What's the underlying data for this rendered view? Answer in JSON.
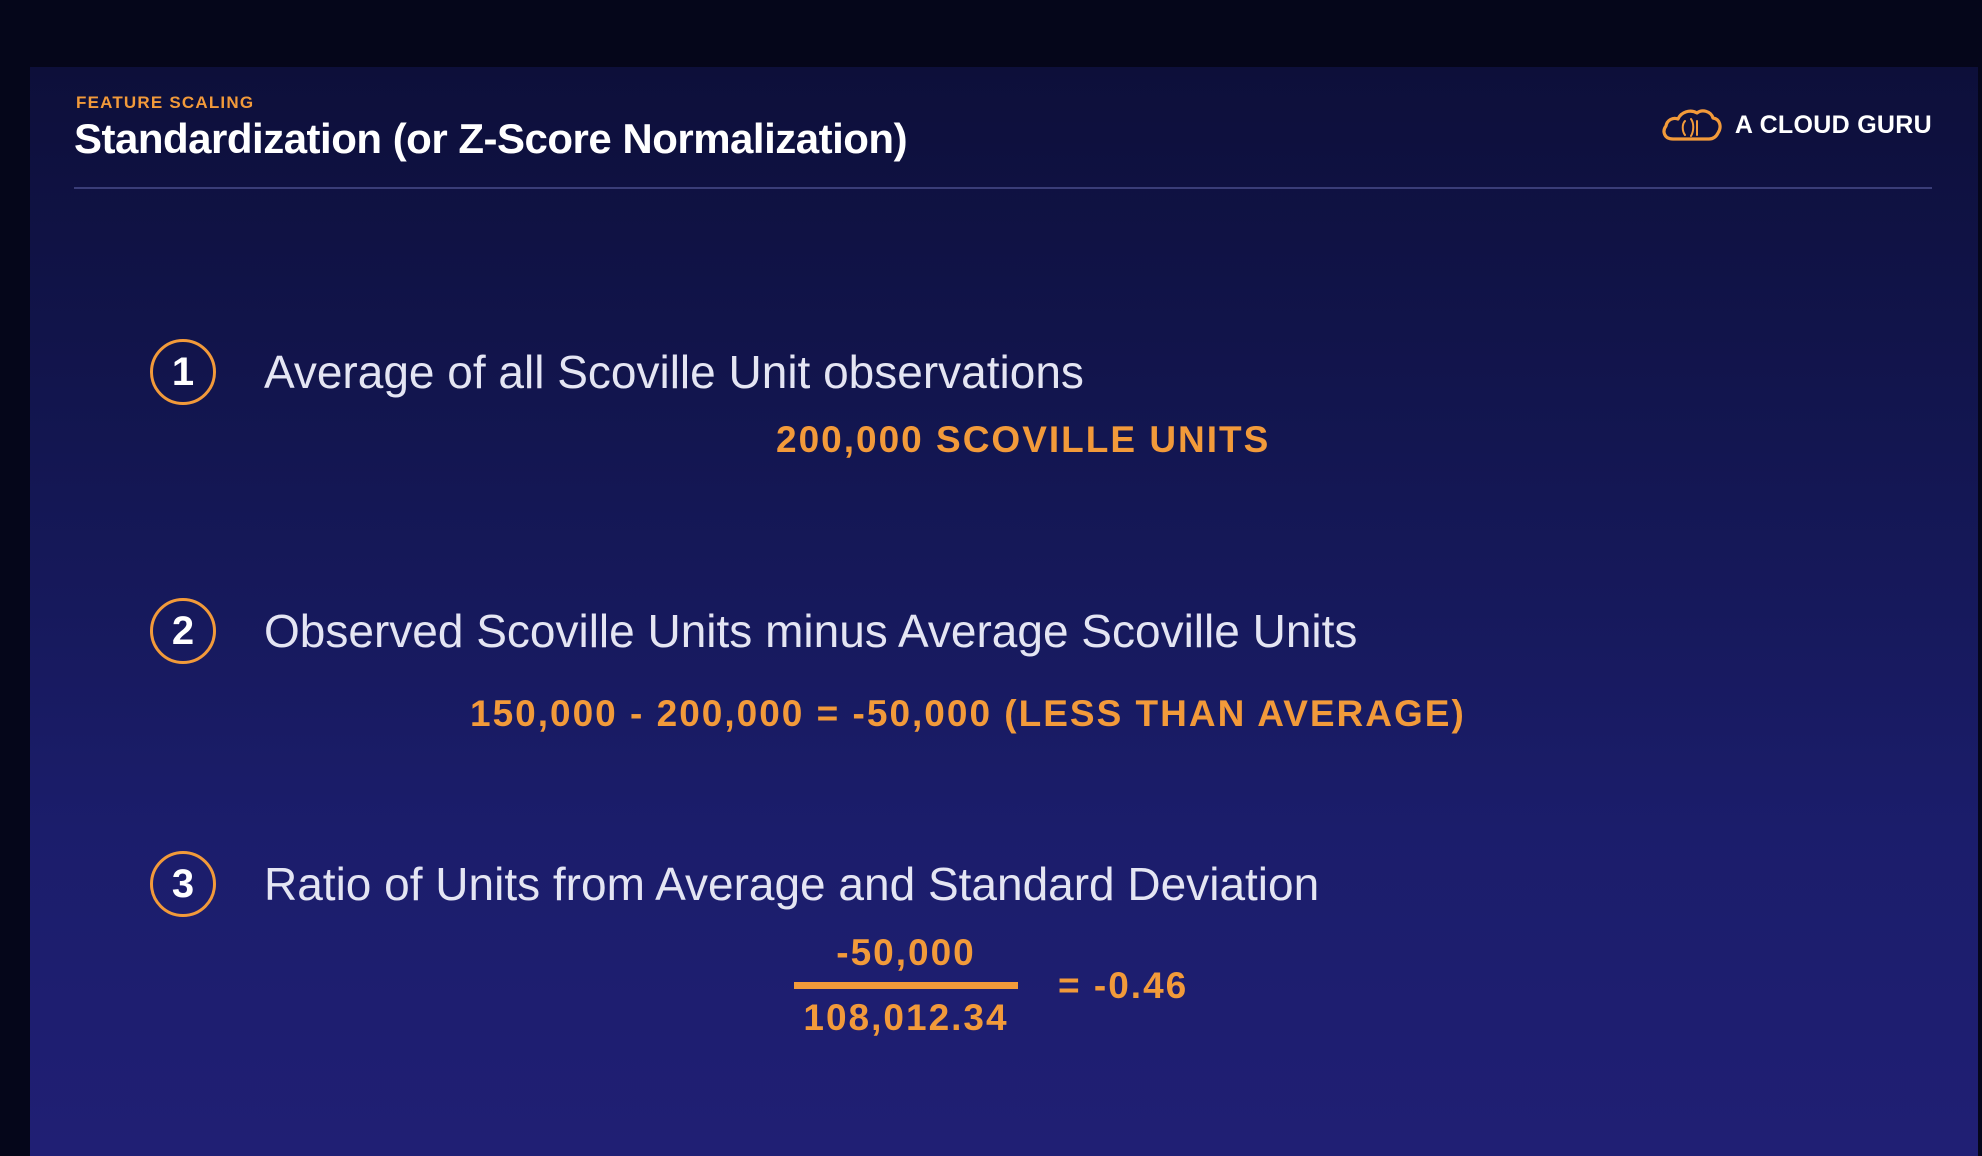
{
  "header": {
    "kicker": "FEATURE SCALING",
    "title": "Standardization (or Z-Score Normalization)",
    "brand": "A CLOUD GURU",
    "brand_icon": "cloud-logo-icon"
  },
  "colors": {
    "accent": "#f29a3a",
    "background": "#161a5c",
    "text": "#ffffff"
  },
  "steps": [
    {
      "number": "1",
      "text": "Average of all Scoville Unit observations",
      "detail": "200,000 SCOVILLE UNITS"
    },
    {
      "number": "2",
      "text": "Observed Scoville Units minus Average Scoville Units",
      "detail": "150,000 - 200,000 = -50,000 (LESS THAN AVERAGE)"
    },
    {
      "number": "3",
      "text": "Ratio of Units from Average and Standard Deviation",
      "numerator": "-50,000",
      "denominator": "108,012.34",
      "result": "= -0.46"
    }
  ]
}
